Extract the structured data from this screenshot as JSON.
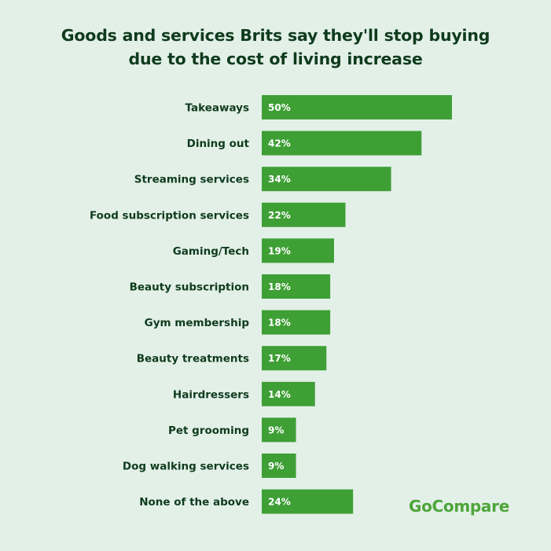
{
  "title_line1": "Goods and services Brits say they'll stop buying",
  "title_line2": "due to the cost of living increase",
  "logo_text": "GoCompare",
  "colors": {
    "background": "#e3f0e8",
    "bar": "#3e9f35",
    "text": "#0f3b1d",
    "logo": "#4ea53a"
  },
  "chart_data": {
    "type": "bar",
    "orientation": "horizontal",
    "title": "Goods and services Brits say they'll stop buying due to the cost of living increase",
    "categories": [
      "Takeaways",
      "Dining out",
      "Streaming services",
      "Food subscription services",
      "Gaming/Tech",
      "Beauty subscription",
      "Gym membership",
      "Beauty treatments",
      "Hairdressers",
      "Pet grooming",
      "Dog walking services",
      "None of the above"
    ],
    "values": [
      50,
      42,
      34,
      22,
      19,
      18,
      18,
      17,
      14,
      9,
      9,
      24
    ],
    "value_labels": [
      "50%",
      "42%",
      "34%",
      "22%",
      "19%",
      "18%",
      "18%",
      "17%",
      "14%",
      "9%",
      "9%",
      "24%"
    ],
    "unit": "%",
    "xlim": [
      0,
      50
    ],
    "grid": false,
    "legend": false
  }
}
